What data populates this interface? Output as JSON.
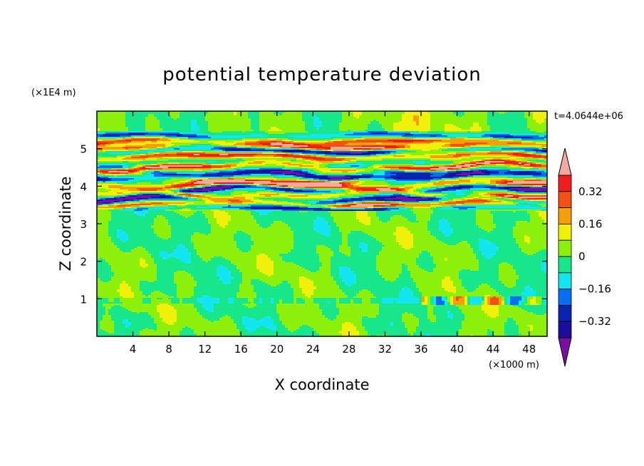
{
  "chart_data": {
    "type": "heatmap",
    "title": "potential temperature deviation",
    "xlabel": "X coordinate",
    "ylabel": "Z coordinate",
    "x_unit": "(×1000 m)",
    "y_unit": "(×1E4 m)",
    "time_label": "t=4.0644e+06",
    "xlim": [
      0,
      50
    ],
    "ylim": [
      0,
      6
    ],
    "x_ticks": [
      4,
      8,
      12,
      16,
      20,
      24,
      28,
      32,
      36,
      40,
      44,
      48
    ],
    "y_ticks": [
      1,
      2,
      3,
      4,
      5
    ],
    "colorbar": {
      "levels": [
        -0.4,
        -0.32,
        -0.24,
        -0.16,
        -0.08,
        0,
        0.08,
        0.16,
        0.24,
        0.32,
        0.4
      ],
      "tick_values": [
        0.32,
        0.16,
        0,
        -0.16,
        -0.32
      ],
      "tick_labels": [
        "0.32",
        "0.16",
        "0",
        "−0.16",
        "−0.32"
      ],
      "colors": [
        "#7a0da6",
        "#1f0d9e",
        "#0a23b0",
        "#0a6ef0",
        "#13e6f0",
        "#17e68a",
        "#8cf00a",
        "#f0f00a",
        "#f5a00a",
        "#f55014",
        "#f01e1e",
        "#f5a8a0"
      ],
      "extend": "both"
    },
    "bands": [
      {
        "z": 5.6,
        "amp": 0.03,
        "v": 0.08
      },
      {
        "z": 5.34,
        "amp": 0.04,
        "v": -0.28
      },
      {
        "z": 5.2,
        "amp": 0.05,
        "v": 0.32
      },
      {
        "z": 5.05,
        "amp": 0.05,
        "v": 0.45
      },
      {
        "z": 4.95,
        "amp": 0.06,
        "v": -0.45
      },
      {
        "z": 4.8,
        "amp": 0.06,
        "v": 0.42
      },
      {
        "z": 4.65,
        "amp": 0.06,
        "v": -0.1
      },
      {
        "z": 4.52,
        "amp": 0.08,
        "v": 0.46
      },
      {
        "z": 4.4,
        "amp": 0.08,
        "v": -0.25
      },
      {
        "z": 4.28,
        "amp": 0.08,
        "v": -0.46
      },
      {
        "z": 4.15,
        "amp": 0.08,
        "v": 0.3
      },
      {
        "z": 4.02,
        "amp": 0.08,
        "v": 0.45
      },
      {
        "z": 3.9,
        "amp": 0.08,
        "v": -0.46
      },
      {
        "z": 3.78,
        "amp": 0.08,
        "v": 0.45
      },
      {
        "z": 3.65,
        "amp": 0.07,
        "v": -0.45
      },
      {
        "z": 3.52,
        "amp": 0.06,
        "v": 0.45
      },
      {
        "z": 3.42,
        "amp": 0.04,
        "v": -0.4
      },
      {
        "z": 3.28,
        "amp": 0.03,
        "v": 0.2
      }
    ]
  }
}
